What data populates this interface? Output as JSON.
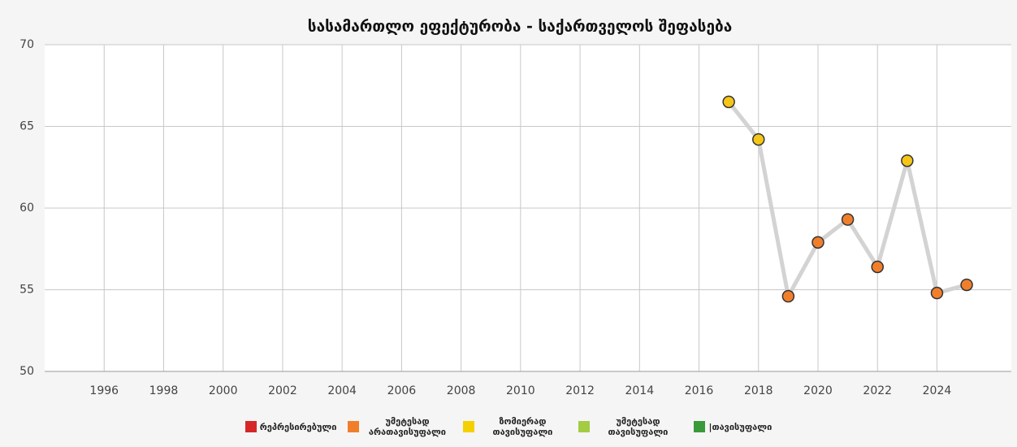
{
  "chart_data": {
    "type": "line",
    "title": "სასამართლო ეფექტურობა - საქართველოს შეფასება",
    "x": [
      2017,
      2018,
      2019,
      2020,
      2021,
      2022,
      2023,
      2024,
      2025
    ],
    "values": [
      66.5,
      64.2,
      54.6,
      57.9,
      59.3,
      56.4,
      62.9,
      54.8,
      55.3
    ],
    "point_colors": [
      "#f5c518",
      "#f5c518",
      "#f07f2c",
      "#f07f2c",
      "#f07f2c",
      "#f07f2c",
      "#f5c518",
      "#f07f2c",
      "#f07f2c"
    ],
    "line_color": "#d3d3d3",
    "xlim": [
      1994,
      2026.5
    ],
    "xticks": [
      1996,
      1998,
      2000,
      2002,
      2004,
      2006,
      2008,
      2010,
      2012,
      2014,
      2016,
      2018,
      2020,
      2022,
      2024
    ],
    "ylim": [
      50,
      70
    ],
    "yticks": [
      50,
      55,
      60,
      65,
      70
    ],
    "grid": true,
    "legend": [
      {
        "name": "რეპრესირებული",
        "color": "#d62728"
      },
      {
        "name": "უმეტესად არათავისუფალი",
        "color": "#f07f2c"
      },
      {
        "name": "ზომიერად თავისუფალი",
        "color": "#f5d000"
      },
      {
        "name": "უმეტესად თავისუფალი",
        "color": "#a3cc44"
      },
      {
        "name": "|თავისუფალი",
        "color": "#3a9a3a"
      }
    ],
    "legend_position": "bottom"
  }
}
